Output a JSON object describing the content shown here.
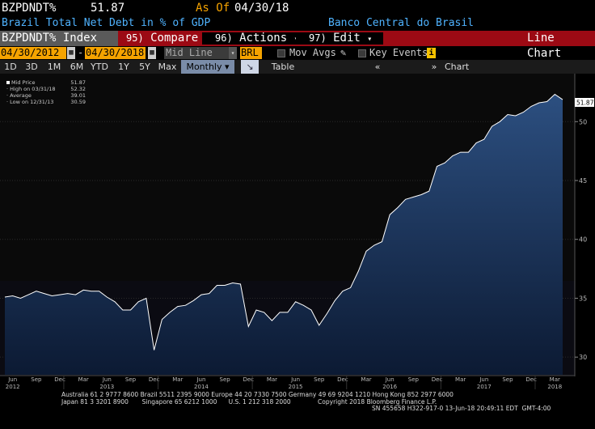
{
  "header": {
    "ticker": "BZPDNDT%",
    "value": "51.87",
    "as_of_label": "As Of",
    "as_of_date": "04/30/18",
    "title": "Brazil Total Net Debt in % of GDP",
    "source": "Banco Central do Brasil"
  },
  "toolbar": {
    "security": "BZPDNDT% Index",
    "compare_num": "95)",
    "compare": "Compare",
    "actions_num": "96)",
    "actions": "Actions",
    "edit_num": "97)",
    "edit": "Edit",
    "chart_type": "Line Chart"
  },
  "range": {
    "start": "04/30/2012",
    "end": "04/30/2018",
    "mode": "Mid Line",
    "currency": "BRL",
    "mov_avgs": "Mov Avgs",
    "key_events": "Key Events"
  },
  "periods": [
    "1D",
    "3D",
    "1M",
    "6M",
    "YTD",
    "1Y",
    "5Y",
    "Max"
  ],
  "frequency": "Monthly",
  "table_label": "Table",
  "chart_content_label": "Chart Content",
  "legend": {
    "rows": [
      {
        "label": "Mid Price",
        "value": "51.87"
      },
      {
        "label": "High on 03/31/18",
        "value": "52.32"
      },
      {
        "label": "Average",
        "value": "39.01"
      },
      {
        "label": "Low on 12/31/13",
        "value": "30.59"
      }
    ]
  },
  "last_value_tag": "51.87",
  "chart_data": {
    "type": "area",
    "x": [
      "2012-05",
      "2012-06",
      "2012-07",
      "2012-08",
      "2012-09",
      "2012-10",
      "2012-11",
      "2012-12",
      "2013-01",
      "2013-02",
      "2013-03",
      "2013-04",
      "2013-05",
      "2013-06",
      "2013-07",
      "2013-08",
      "2013-09",
      "2013-10",
      "2013-11",
      "2013-12",
      "2014-01",
      "2014-02",
      "2014-03",
      "2014-04",
      "2014-05",
      "2014-06",
      "2014-07",
      "2014-08",
      "2014-09",
      "2014-10",
      "2014-11",
      "2014-12",
      "2015-01",
      "2015-02",
      "2015-03",
      "2015-04",
      "2015-05",
      "2015-06",
      "2015-07",
      "2015-08",
      "2015-09",
      "2015-10",
      "2015-11",
      "2015-12",
      "2016-01",
      "2016-02",
      "2016-03",
      "2016-04",
      "2016-05",
      "2016-06",
      "2016-07",
      "2016-08",
      "2016-09",
      "2016-10",
      "2016-11",
      "2016-12",
      "2017-01",
      "2017-02",
      "2017-03",
      "2017-04",
      "2017-05",
      "2017-06",
      "2017-07",
      "2017-08",
      "2017-09",
      "2017-10",
      "2017-11",
      "2017-12",
      "2018-01",
      "2018-02",
      "2018-03",
      "2018-04"
    ],
    "values": [
      35.1,
      35.2,
      35.0,
      35.3,
      35.6,
      35.4,
      35.2,
      35.3,
      35.4,
      35.3,
      35.7,
      35.6,
      35.6,
      35.1,
      34.7,
      34.0,
      34.0,
      34.7,
      35.0,
      30.6,
      33.2,
      33.8,
      34.3,
      34.4,
      34.8,
      35.3,
      35.4,
      36.1,
      36.1,
      36.3,
      36.2,
      32.6,
      34.0,
      33.8,
      33.1,
      33.8,
      33.8,
      34.7,
      34.4,
      34.0,
      32.7,
      33.7,
      34.8,
      35.6,
      35.9,
      37.3,
      39.0,
      39.5,
      39.8,
      42.1,
      42.7,
      43.4,
      43.6,
      43.8,
      44.1,
      46.2,
      46.5,
      47.1,
      47.4,
      47.4,
      48.2,
      48.5,
      49.6,
      50.0,
      50.6,
      50.5,
      50.8,
      51.3,
      51.6,
      51.7,
      52.32,
      51.87
    ],
    "ylim": [
      28.5,
      53.8
    ],
    "y_ticks": [
      30,
      35,
      40,
      45,
      50
    ],
    "x_month_labels": [
      "Jun",
      "Sep",
      "Dec",
      "Mar",
      "Jun",
      "Sep",
      "Dec",
      "Mar",
      "Jun",
      "Sep",
      "Dec",
      "Mar",
      "Jun",
      "Sep",
      "Dec",
      "Mar",
      "Jun",
      "Sep",
      "Dec",
      "Mar",
      "Jun",
      "Sep",
      "Dec",
      "Mar"
    ],
    "x_year_labels": [
      "2012",
      "2013",
      "2014",
      "2015",
      "2016",
      "2017",
      "2018"
    ],
    "grid": "horizontal",
    "colors": {
      "line": "#ffffff",
      "fill_top": "#2c4f80",
      "fill_bottom": "#0c1a33"
    }
  },
  "footer": {
    "line1": "Australia 61 2 9777 8600 Brazil 5511 2395 9000 Europe 44 20 7330 7500 Germany 49 69 9204 1210 Hong Kong 852 2977 6000",
    "line2": "Japan 81 3 3201 8900       Singapore 65 6212 1000      U.S. 1 212 318 2000              Copyright 2018 Bloomberg Finance L.P.",
    "line3": "SN 455658 H322-917-0 13-Jun-18 20:49:11 EDT  GMT-4:00"
  }
}
